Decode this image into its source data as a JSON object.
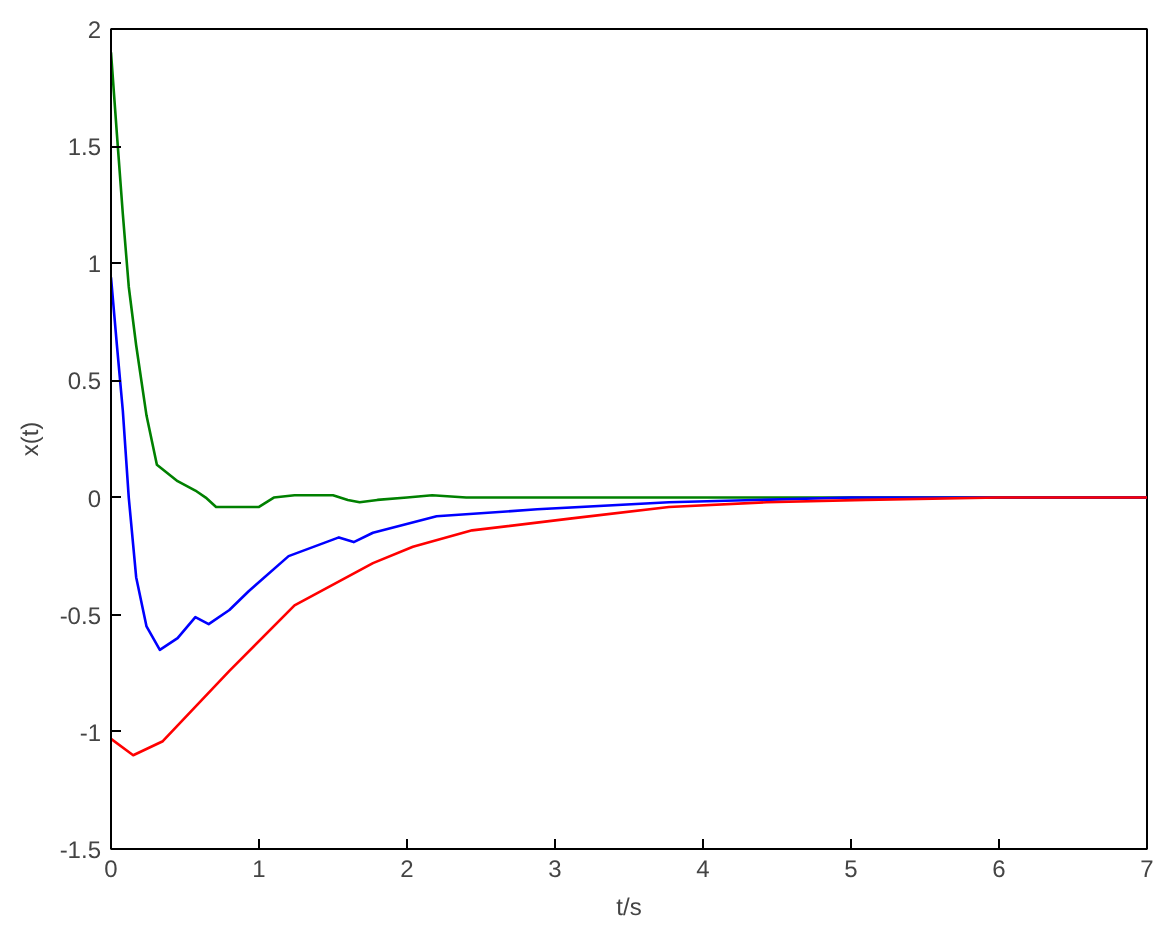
{
  "chart_data": {
    "type": "line",
    "xlabel": "t/s",
    "ylabel": "x(t)",
    "xlim": [
      0,
      7
    ],
    "ylim": [
      -1.5,
      2
    ],
    "xticks": [
      0,
      1,
      2,
      3,
      4,
      5,
      6,
      7
    ],
    "yticks": [
      -1.5,
      -1,
      -0.5,
      0,
      0.5,
      1,
      1.5,
      2
    ],
    "grid": false,
    "line_style": "solid",
    "series": [
      {
        "color": "#008000",
        "x": [
          0,
          0.04,
          0.08,
          0.12,
          0.17,
          0.24,
          0.31,
          0.45,
          0.57,
          0.64,
          0.71,
          0.85,
          1.0,
          1.1,
          1.24,
          1.5,
          1.6,
          1.68,
          1.8,
          2.0,
          2.17,
          2.4,
          2.6,
          3,
          4,
          5,
          6,
          7
        ],
        "values": [
          1.9,
          1.55,
          1.21,
          0.9,
          0.65,
          0.35,
          0.14,
          0.07,
          0.03,
          0.0,
          -0.04,
          -0.04,
          -0.04,
          0.0,
          0.01,
          0.01,
          -0.01,
          -0.02,
          -0.01,
          0.0,
          0.01,
          0.0,
          0.0,
          0.0,
          0.0,
          0.0,
          0.0,
          0.0
        ]
      },
      {
        "color": "#0000ff",
        "x": [
          0,
          0.04,
          0.08,
          0.12,
          0.17,
          0.24,
          0.33,
          0.45,
          0.57,
          0.66,
          0.8,
          0.93,
          1.2,
          1.54,
          1.64,
          1.77,
          2.2,
          2.88,
          3.77,
          5,
          6,
          7
        ],
        "values": [
          0.94,
          0.65,
          0.37,
          0.0,
          -0.34,
          -0.55,
          -0.65,
          -0.6,
          -0.51,
          -0.54,
          -0.48,
          -0.4,
          -0.25,
          -0.17,
          -0.19,
          -0.15,
          -0.08,
          -0.05,
          -0.02,
          0.0,
          0.0,
          0.0
        ]
      },
      {
        "color": "#ff0000",
        "x": [
          0,
          0.15,
          0.35,
          0.8,
          1.24,
          1.77,
          2.04,
          2.44,
          3.1,
          3.77,
          4.43,
          5.1,
          6,
          7
        ],
        "values": [
          -1.03,
          -1.1,
          -1.04,
          -0.74,
          -0.46,
          -0.28,
          -0.21,
          -0.14,
          -0.09,
          -0.04,
          -0.02,
          -0.01,
          0.0,
          0.0
        ]
      }
    ]
  }
}
